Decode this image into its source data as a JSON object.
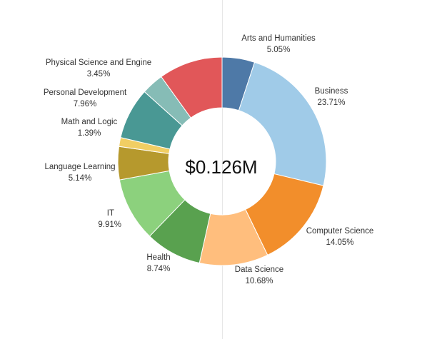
{
  "chart_data": {
    "type": "pie",
    "center_label": "$0.126M",
    "categories": [
      "Arts and Humanities",
      "Business",
      "Computer Science",
      "Data Science",
      "Health",
      "IT",
      "Language Learning",
      "Math and Logic",
      "Personal Development",
      "Physical Science and Engine",
      ""
    ],
    "labels": [
      "5.05%",
      "23.71%",
      "14.05%",
      "10.68%",
      "8.74%",
      "9.91%",
      "5.14%",
      "1.39%",
      "7.96%",
      "3.45%",
      ""
    ],
    "values": [
      5.05,
      23.71,
      14.05,
      10.68,
      8.74,
      9.91,
      5.14,
      1.39,
      7.96,
      3.45,
      9.92
    ],
    "colors": [
      "#4e79a7",
      "#a0cbe8",
      "#f28e2b",
      "#ffbe7d",
      "#59a14f",
      "#8cd17d",
      "#b6992d",
      "#f1ce63",
      "#499894",
      "#86bcb6",
      "#e15759"
    ]
  }
}
